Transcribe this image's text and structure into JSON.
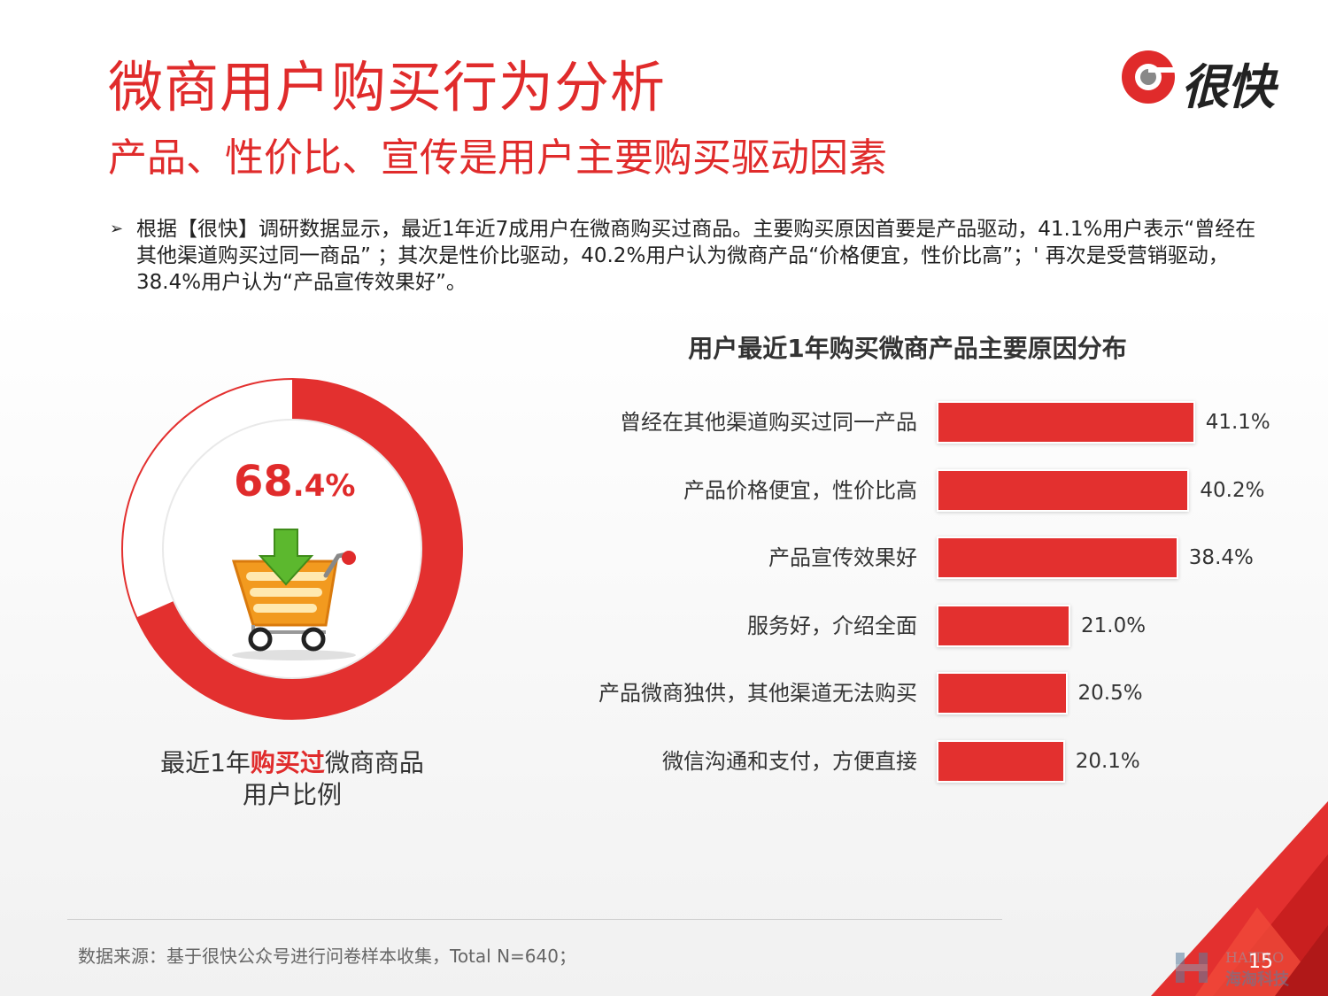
{
  "header": {
    "title": "微商用户购买行为分析",
    "subtitle": "产品、性价比、宣传是用户主要购买驱动因素",
    "logo_text": "很快"
  },
  "summary": {
    "bullet": "➢",
    "text": "根据【很快】调研数据显示，最近1年近7成用户在微商购买过商品。主要购买原因首要是产品驱动，41.1%用户表示“曾经在其他渠道购买过同一商品” ；其次是性价比驱动，40.2%用户认为微商产品“价格便宜，性价比高”；' 再次是受营销驱动，38.4%用户认为“产品宣传效果好”。"
  },
  "donut": {
    "value_main": "68",
    "value_small": ".4%",
    "fraction": 0.684,
    "caption_prefix": "最近1年",
    "caption_highlight": "购买过",
    "caption_suffix": "微商商品",
    "caption_line2": "用户比例",
    "color_fill": "#e3302f",
    "color_rest": "#ffffff"
  },
  "chart_data": {
    "type": "bar",
    "orientation": "horizontal",
    "title": "用户最近1年购买微商产品主要原因分布",
    "categories": [
      "曾经在其他渠道购买过同一产品",
      "产品价格便宜，性价比高",
      "产品宣传效果好",
      "服务好，介绍全面",
      "产品微商独供，其他渠道无法购买",
      "微信沟通和支付，方便直接"
    ],
    "values": [
      41.1,
      40.2,
      38.4,
      21.0,
      20.5,
      20.1
    ],
    "value_labels": [
      "41.1%",
      "40.2%",
      "38.4%",
      "21.0%",
      "20.5%",
      "20.1%"
    ],
    "unit": "%",
    "xlim": [
      0,
      60
    ],
    "grid": false,
    "color": "#e3302f"
  },
  "footer": {
    "source": "数据来源：基于很快公众号进行问卷样本收集，Total N=640；",
    "page_number": "15",
    "watermark_top": "HAITAO",
    "watermark_bottom": "海淘科技"
  }
}
